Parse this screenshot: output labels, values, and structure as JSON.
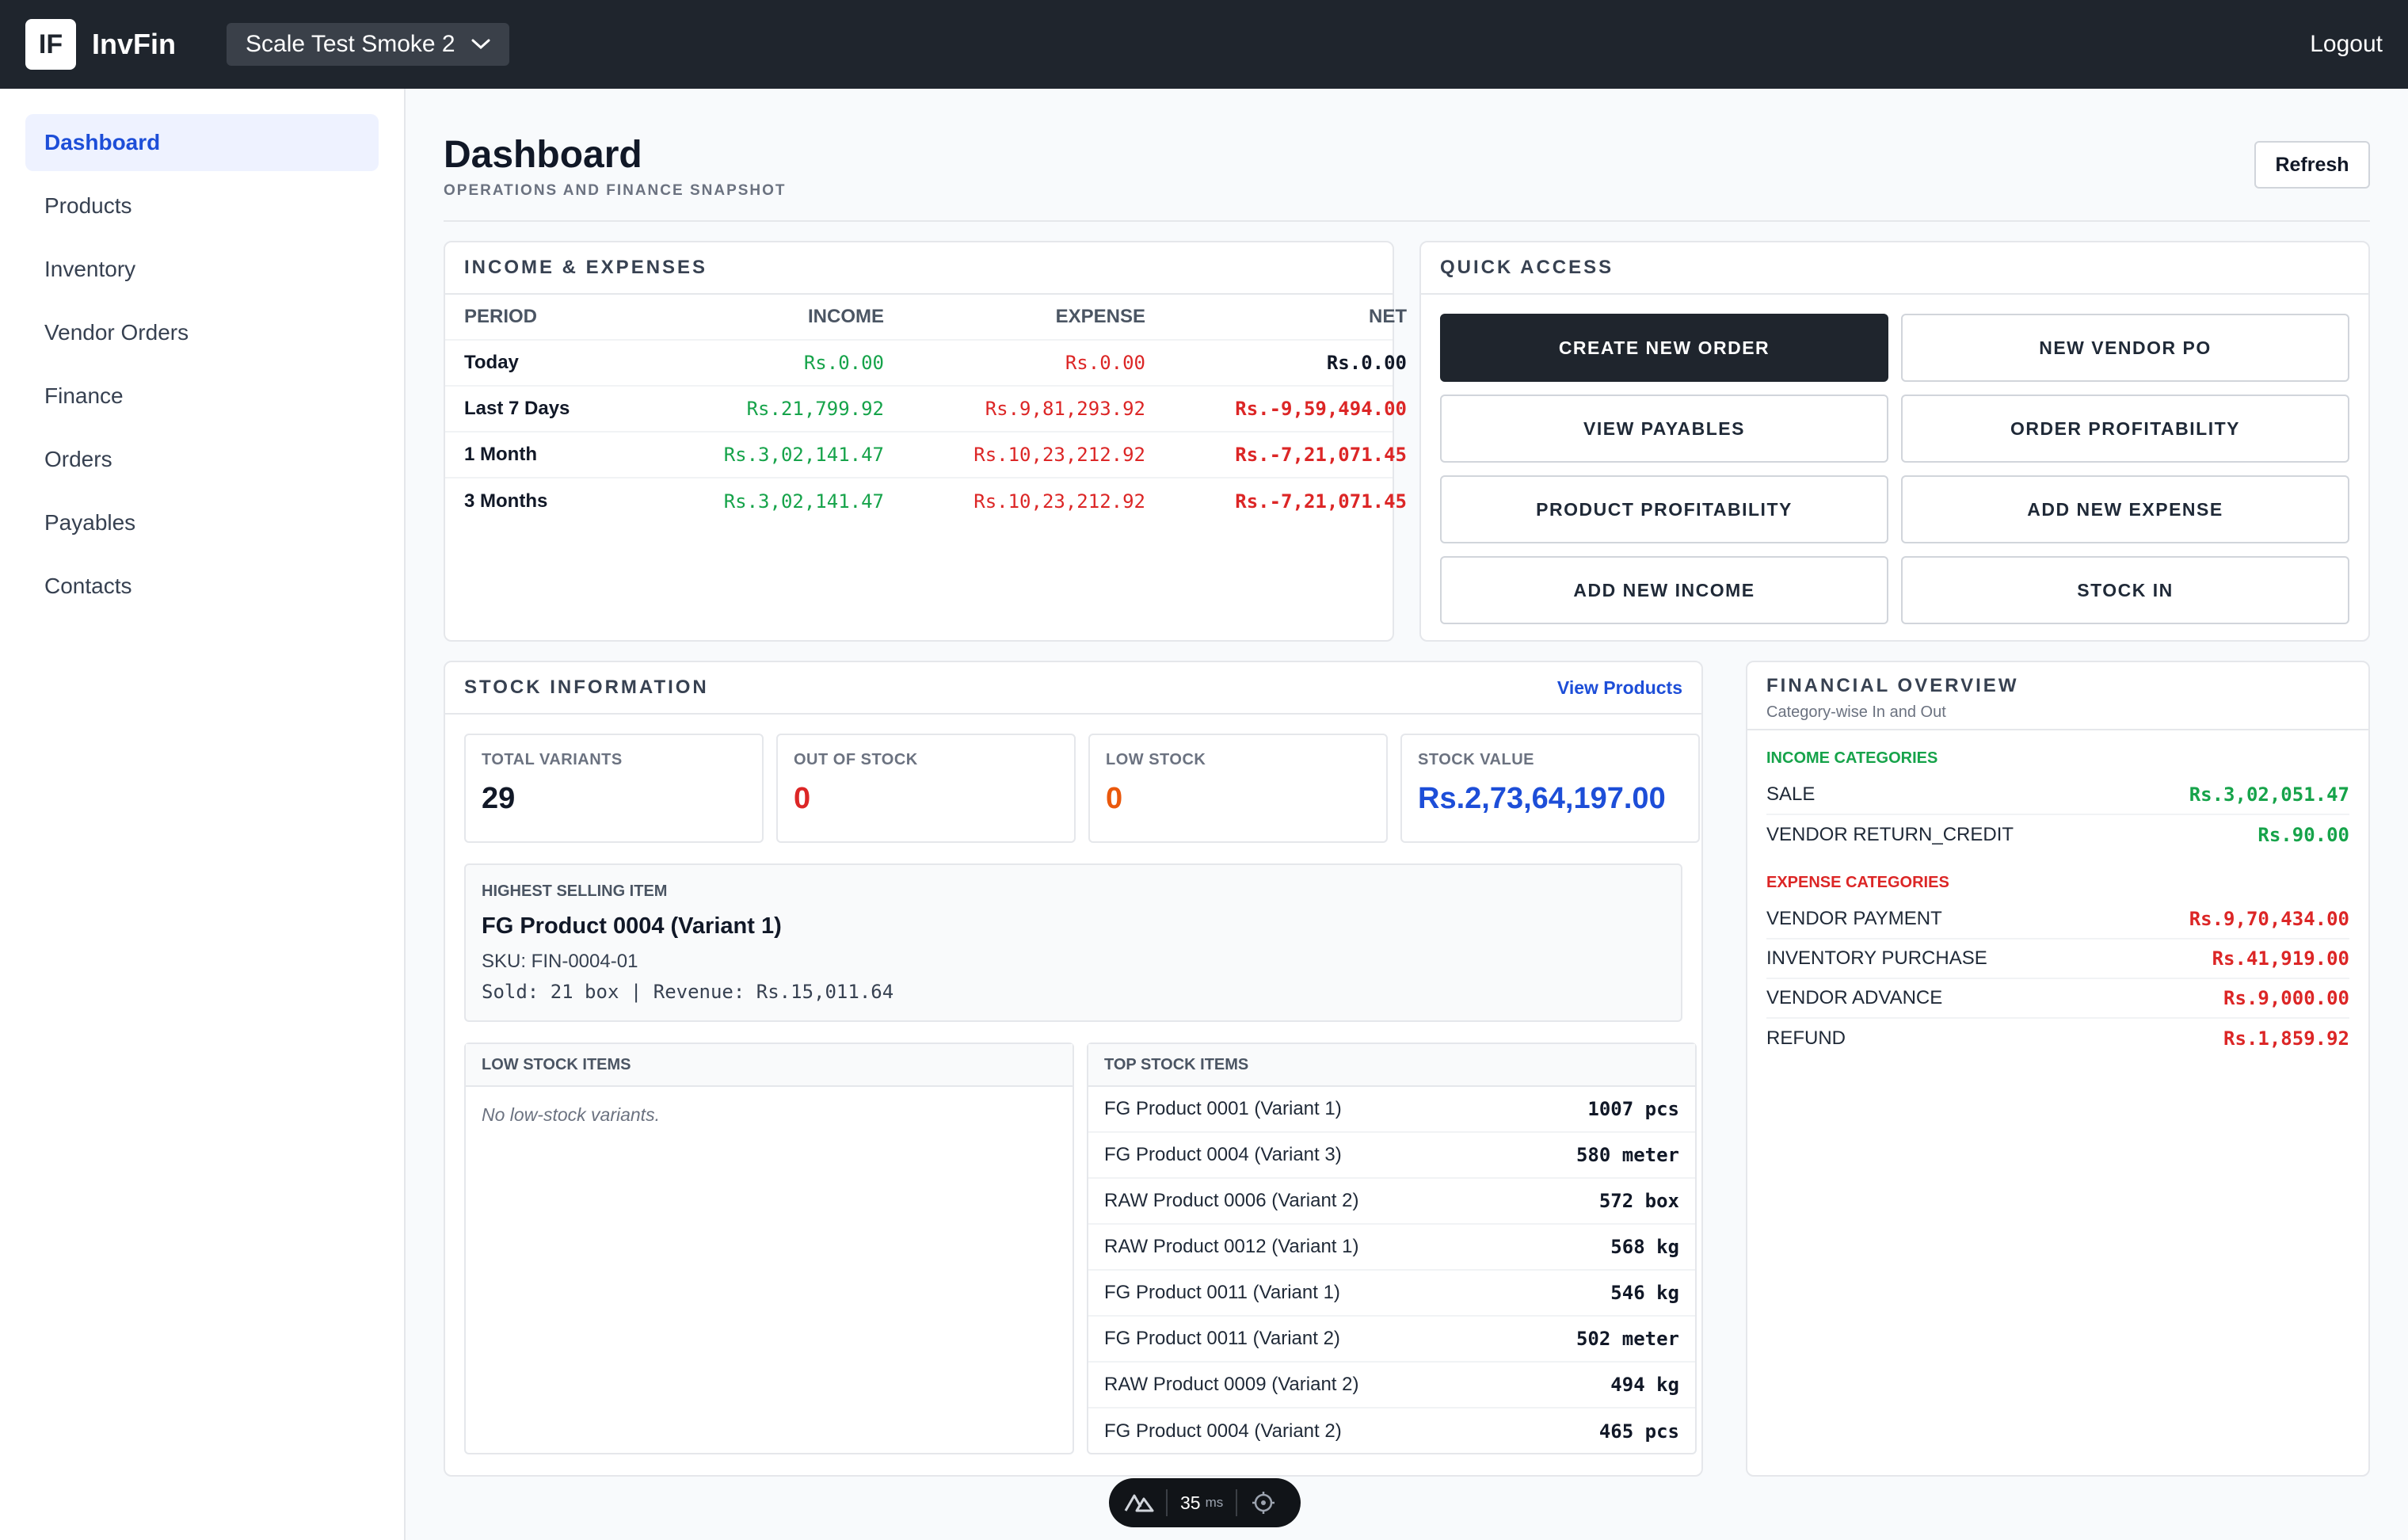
{
  "topbar": {
    "logo": "IF",
    "app_name": "InvFin",
    "workspace": "Scale Test Smoke 2",
    "logout": "Logout"
  },
  "sidebar": {
    "items": [
      {
        "label": "Dashboard"
      },
      {
        "label": "Products"
      },
      {
        "label": "Inventory"
      },
      {
        "label": "Vendor Orders"
      },
      {
        "label": "Finance"
      },
      {
        "label": "Orders"
      },
      {
        "label": "Payables"
      },
      {
        "label": "Contacts"
      }
    ]
  },
  "header": {
    "title": "Dashboard",
    "subtitle": "OPERATIONS AND FINANCE SNAPSHOT",
    "refresh": "Refresh"
  },
  "income_expenses": {
    "title": "INCOME & EXPENSES",
    "columns": [
      "PERIOD",
      "INCOME",
      "EXPENSE",
      "NET"
    ],
    "rows": [
      {
        "period": "Today",
        "income": "Rs.0.00",
        "expense": "Rs.0.00",
        "net": "Rs.0.00"
      },
      {
        "period": "Last 7 Days",
        "income": "Rs.21,799.92",
        "expense": "Rs.9,81,293.92",
        "net": "Rs.-9,59,494.00"
      },
      {
        "period": "1 Month",
        "income": "Rs.3,02,141.47",
        "expense": "Rs.10,23,212.92",
        "net": "Rs.-7,21,071.45"
      },
      {
        "period": "3 Months",
        "income": "Rs.3,02,141.47",
        "expense": "Rs.10,23,212.92",
        "net": "Rs.-7,21,071.45"
      }
    ]
  },
  "quick_access": {
    "title": "QUICK ACCESS",
    "buttons": [
      {
        "label": "CREATE NEW ORDER"
      },
      {
        "label": "NEW VENDOR PO"
      },
      {
        "label": "VIEW PAYABLES"
      },
      {
        "label": "ORDER PROFITABILITY"
      },
      {
        "label": "PRODUCT PROFITABILITY"
      },
      {
        "label": "ADD NEW EXPENSE"
      },
      {
        "label": "ADD NEW INCOME"
      },
      {
        "label": "STOCK IN"
      }
    ]
  },
  "stock": {
    "title": "STOCK INFORMATION",
    "view_products": "View Products",
    "stats": [
      {
        "label": "TOTAL VARIANTS",
        "value": "29"
      },
      {
        "label": "OUT OF STOCK",
        "value": "0"
      },
      {
        "label": "LOW STOCK",
        "value": "0"
      },
      {
        "label": "STOCK VALUE",
        "value": "Rs.2,73,64,197.00"
      }
    ],
    "highest": {
      "label": "HIGHEST SELLING ITEM",
      "name": "FG Product 0004 (Variant 1)",
      "sku": "SKU: FIN-0004-01",
      "sold": "Sold: 21 box | Revenue: Rs.15,011.64"
    },
    "low_stock": {
      "title": "LOW STOCK ITEMS",
      "empty": "No low-stock variants."
    },
    "top_stock": {
      "title": "TOP STOCK ITEMS",
      "items": [
        {
          "name": "FG Product 0001 (Variant 1)",
          "qty": "1007 pcs"
        },
        {
          "name": "FG Product 0004 (Variant 3)",
          "qty": "580 meter"
        },
        {
          "name": "RAW Product 0006 (Variant 2)",
          "qty": "572 box"
        },
        {
          "name": "RAW Product 0012 (Variant 1)",
          "qty": "568 kg"
        },
        {
          "name": "FG Product 0011 (Variant 1)",
          "qty": "546 kg"
        },
        {
          "name": "FG Product 0011 (Variant 2)",
          "qty": "502 meter"
        },
        {
          "name": "RAW Product 0009 (Variant 2)",
          "qty": "494 kg"
        },
        {
          "name": "FG Product 0004 (Variant 2)",
          "qty": "465 pcs"
        }
      ]
    }
  },
  "financial_overview": {
    "title": "FINANCIAL OVERVIEW",
    "subtitle": "Category-wise In and Out",
    "income_title": "INCOME CATEGORIES",
    "income": [
      {
        "name": "SALE",
        "amount": "Rs.3,02,051.47"
      },
      {
        "name": "VENDOR RETURN_CREDIT",
        "amount": "Rs.90.00"
      }
    ],
    "expense_title": "EXPENSE CATEGORIES",
    "expense": [
      {
        "name": "VENDOR PAYMENT",
        "amount": "Rs.9,70,434.00"
      },
      {
        "name": "INVENTORY PURCHASE",
        "amount": "Rs.41,919.00"
      },
      {
        "name": "VENDOR ADVANCE",
        "amount": "Rs.9,000.00"
      },
      {
        "name": "REFUND",
        "amount": "Rs.1,859.92"
      }
    ]
  },
  "perf": {
    "value": "35",
    "unit": "ms"
  },
  "colors": {
    "topbar": "#1f252d",
    "accent": "#1d4ed8",
    "income": "#16a34a",
    "expense": "#dc2626",
    "low_stock": "#ea580c"
  }
}
